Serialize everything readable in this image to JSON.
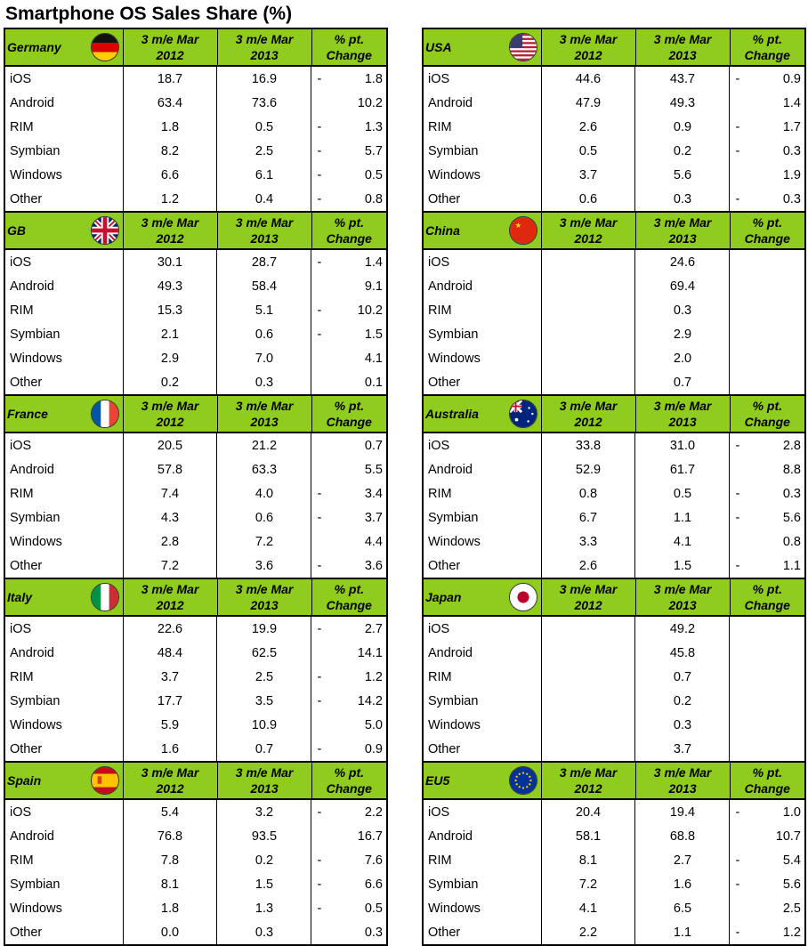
{
  "title": "Smartphone OS Sales Share (%)",
  "header": {
    "col1": [
      "3 m/e Mar",
      "2012"
    ],
    "col2": [
      "3 m/e Mar",
      "2013"
    ],
    "col3": [
      "% pt.",
      "Change"
    ]
  },
  "chart_data": {
    "type": "table",
    "title": "Smartphone OS Sales Share (%)",
    "columns": [
      "3 m/e Mar 2012",
      "3 m/e Mar 2013",
      "% pt. Change"
    ],
    "regions": [
      {
        "name": "Germany",
        "flag": "germany-flag",
        "column": "left",
        "rows": [
          {
            "os": "iOS",
            "y2012": "18.7",
            "y2013": "16.9",
            "sign": "-",
            "change": "1.8"
          },
          {
            "os": "Android",
            "y2012": "63.4",
            "y2013": "73.6",
            "sign": "",
            "change": "10.2"
          },
          {
            "os": "RIM",
            "y2012": "1.8",
            "y2013": "0.5",
            "sign": "-",
            "change": "1.3"
          },
          {
            "os": "Symbian",
            "y2012": "8.2",
            "y2013": "2.5",
            "sign": "-",
            "change": "5.7"
          },
          {
            "os": "Windows",
            "y2012": "6.6",
            "y2013": "6.1",
            "sign": "-",
            "change": "0.5"
          },
          {
            "os": "Other",
            "y2012": "1.2",
            "y2013": "0.4",
            "sign": "-",
            "change": "0.8"
          }
        ]
      },
      {
        "name": "GB",
        "flag": "uk-flag",
        "column": "left",
        "rows": [
          {
            "os": "iOS",
            "y2012": "30.1",
            "y2013": "28.7",
            "sign": "-",
            "change": "1.4"
          },
          {
            "os": "Android",
            "y2012": "49.3",
            "y2013": "58.4",
            "sign": "",
            "change": "9.1"
          },
          {
            "os": "RIM",
            "y2012": "15.3",
            "y2013": "5.1",
            "sign": "-",
            "change": "10.2"
          },
          {
            "os": "Symbian",
            "y2012": "2.1",
            "y2013": "0.6",
            "sign": "-",
            "change": "1.5"
          },
          {
            "os": "Windows",
            "y2012": "2.9",
            "y2013": "7.0",
            "sign": "",
            "change": "4.1"
          },
          {
            "os": "Other",
            "y2012": "0.2",
            "y2013": "0.3",
            "sign": "",
            "change": "0.1"
          }
        ]
      },
      {
        "name": "France",
        "flag": "france-flag",
        "column": "left",
        "rows": [
          {
            "os": "iOS",
            "y2012": "20.5",
            "y2013": "21.2",
            "sign": "",
            "change": "0.7"
          },
          {
            "os": "Android",
            "y2012": "57.8",
            "y2013": "63.3",
            "sign": "",
            "change": "5.5"
          },
          {
            "os": "RIM",
            "y2012": "7.4",
            "y2013": "4.0",
            "sign": "-",
            "change": "3.4"
          },
          {
            "os": "Symbian",
            "y2012": "4.3",
            "y2013": "0.6",
            "sign": "-",
            "change": "3.7"
          },
          {
            "os": "Windows",
            "y2012": "2.8",
            "y2013": "7.2",
            "sign": "",
            "change": "4.4"
          },
          {
            "os": "Other",
            "y2012": "7.2",
            "y2013": "3.6",
            "sign": "-",
            "change": "3.6"
          }
        ]
      },
      {
        "name": "Italy",
        "flag": "italy-flag",
        "column": "left",
        "rows": [
          {
            "os": "iOS",
            "y2012": "22.6",
            "y2013": "19.9",
            "sign": "-",
            "change": "2.7"
          },
          {
            "os": "Android",
            "y2012": "48.4",
            "y2013": "62.5",
            "sign": "",
            "change": "14.1"
          },
          {
            "os": "RIM",
            "y2012": "3.7",
            "y2013": "2.5",
            "sign": "-",
            "change": "1.2"
          },
          {
            "os": "Symbian",
            "y2012": "17.7",
            "y2013": "3.5",
            "sign": "-",
            "change": "14.2"
          },
          {
            "os": "Windows",
            "y2012": "5.9",
            "y2013": "10.9",
            "sign": "",
            "change": "5.0"
          },
          {
            "os": "Other",
            "y2012": "1.6",
            "y2013": "0.7",
            "sign": "-",
            "change": "0.9"
          }
        ]
      },
      {
        "name": "Spain",
        "flag": "spain-flag",
        "column": "left",
        "rows": [
          {
            "os": "iOS",
            "y2012": "5.4",
            "y2013": "3.2",
            "sign": "-",
            "change": "2.2"
          },
          {
            "os": "Android",
            "y2012": "76.8",
            "y2013": "93.5",
            "sign": "",
            "change": "16.7"
          },
          {
            "os": "RIM",
            "y2012": "7.8",
            "y2013": "0.2",
            "sign": "-",
            "change": "7.6"
          },
          {
            "os": "Symbian",
            "y2012": "8.1",
            "y2013": "1.5",
            "sign": "-",
            "change": "6.6"
          },
          {
            "os": "Windows",
            "y2012": "1.8",
            "y2013": "1.3",
            "sign": "-",
            "change": "0.5"
          },
          {
            "os": "Other",
            "y2012": "0.0",
            "y2013": "0.3",
            "sign": "",
            "change": "0.3"
          }
        ]
      },
      {
        "name": "USA",
        "flag": "usa-flag",
        "column": "right",
        "rows": [
          {
            "os": "iOS",
            "y2012": "44.6",
            "y2013": "43.7",
            "sign": "-",
            "change": "0.9"
          },
          {
            "os": "Android",
            "y2012": "47.9",
            "y2013": "49.3",
            "sign": "",
            "change": "1.4"
          },
          {
            "os": "RIM",
            "y2012": "2.6",
            "y2013": "0.9",
            "sign": "-",
            "change": "1.7"
          },
          {
            "os": "Symbian",
            "y2012": "0.5",
            "y2013": "0.2",
            "sign": "-",
            "change": "0.3"
          },
          {
            "os": "Windows",
            "y2012": "3.7",
            "y2013": "5.6",
            "sign": "",
            "change": "1.9"
          },
          {
            "os": "Other",
            "y2012": "0.6",
            "y2013": "0.3",
            "sign": "-",
            "change": "0.3"
          }
        ]
      },
      {
        "name": "China",
        "flag": "china-flag",
        "column": "right",
        "rows": [
          {
            "os": "iOS",
            "y2012": "",
            "y2013": "24.6",
            "sign": "",
            "change": ""
          },
          {
            "os": "Android",
            "y2012": "",
            "y2013": "69.4",
            "sign": "",
            "change": ""
          },
          {
            "os": "RIM",
            "y2012": "",
            "y2013": "0.3",
            "sign": "",
            "change": ""
          },
          {
            "os": "Symbian",
            "y2012": "",
            "y2013": "2.9",
            "sign": "",
            "change": ""
          },
          {
            "os": "Windows",
            "y2012": "",
            "y2013": "2.0",
            "sign": "",
            "change": ""
          },
          {
            "os": "Other",
            "y2012": "",
            "y2013": "0.7",
            "sign": "",
            "change": ""
          }
        ]
      },
      {
        "name": "Australia",
        "flag": "australia-flag",
        "column": "right",
        "rows": [
          {
            "os": "iOS",
            "y2012": "33.8",
            "y2013": "31.0",
            "sign": "-",
            "change": "2.8"
          },
          {
            "os": "Android",
            "y2012": "52.9",
            "y2013": "61.7",
            "sign": "",
            "change": "8.8"
          },
          {
            "os": "RIM",
            "y2012": "0.8",
            "y2013": "0.5",
            "sign": "-",
            "change": "0.3"
          },
          {
            "os": "Symbian",
            "y2012": "6.7",
            "y2013": "1.1",
            "sign": "-",
            "change": "5.6"
          },
          {
            "os": "Windows",
            "y2012": "3.3",
            "y2013": "4.1",
            "sign": "",
            "change": "0.8"
          },
          {
            "os": "Other",
            "y2012": "2.6",
            "y2013": "1.5",
            "sign": "-",
            "change": "1.1"
          }
        ]
      },
      {
        "name": "Japan",
        "flag": "japan-flag",
        "column": "right",
        "rows": [
          {
            "os": "iOS",
            "y2012": "",
            "y2013": "49.2",
            "sign": "",
            "change": ""
          },
          {
            "os": "Android",
            "y2012": "",
            "y2013": "45.8",
            "sign": "",
            "change": ""
          },
          {
            "os": "RIM",
            "y2012": "",
            "y2013": "0.7",
            "sign": "",
            "change": ""
          },
          {
            "os": "Symbian",
            "y2012": "",
            "y2013": "0.2",
            "sign": "",
            "change": ""
          },
          {
            "os": "Windows",
            "y2012": "",
            "y2013": "0.3",
            "sign": "",
            "change": ""
          },
          {
            "os": "Other",
            "y2012": "",
            "y2013": "3.7",
            "sign": "",
            "change": ""
          }
        ]
      },
      {
        "name": "EU5",
        "flag": "eu-flag",
        "column": "right",
        "rows": [
          {
            "os": "iOS",
            "y2012": "20.4",
            "y2013": "19.4",
            "sign": "-",
            "change": "1.0"
          },
          {
            "os": "Android",
            "y2012": "58.1",
            "y2013": "68.8",
            "sign": "",
            "change": "10.7"
          },
          {
            "os": "RIM",
            "y2012": "8.1",
            "y2013": "2.7",
            "sign": "-",
            "change": "5.4"
          },
          {
            "os": "Symbian",
            "y2012": "7.2",
            "y2013": "1.6",
            "sign": "-",
            "change": "5.6"
          },
          {
            "os": "Windows",
            "y2012": "4.1",
            "y2013": "6.5",
            "sign": "",
            "change": "2.5"
          },
          {
            "os": "Other",
            "y2012": "2.2",
            "y2013": "1.1",
            "sign": "-",
            "change": "1.2"
          }
        ]
      }
    ]
  },
  "colors": {
    "header_bg": "#8fcc1e",
    "border": "#000000"
  }
}
